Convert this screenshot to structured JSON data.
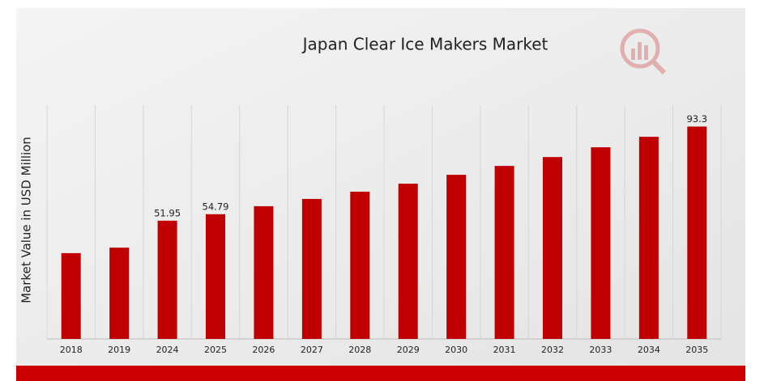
{
  "chart_data": {
    "type": "bar",
    "title": "Japan Clear Ice Makers Market",
    "y_label": "Market Value in USD Million",
    "categories": [
      "2018",
      "2019",
      "2024",
      "2025",
      "2026",
      "2027",
      "2028",
      "2029",
      "2030",
      "2031",
      "2032",
      "2033",
      "2034",
      "2035"
    ],
    "values": [
      37.7,
      40.1,
      51.95,
      54.79,
      58.3,
      61.5,
      64.7,
      68.2,
      72.1,
      76.0,
      79.9,
      84.2,
      88.8,
      93.3
    ],
    "value_labels": [
      null,
      null,
      "51.95",
      "54.79",
      null,
      null,
      null,
      null,
      null,
      null,
      null,
      null,
      null,
      "93.3"
    ],
    "color": "#c00000",
    "ylim": [
      0,
      102.7
    ],
    "grid": true
  }
}
